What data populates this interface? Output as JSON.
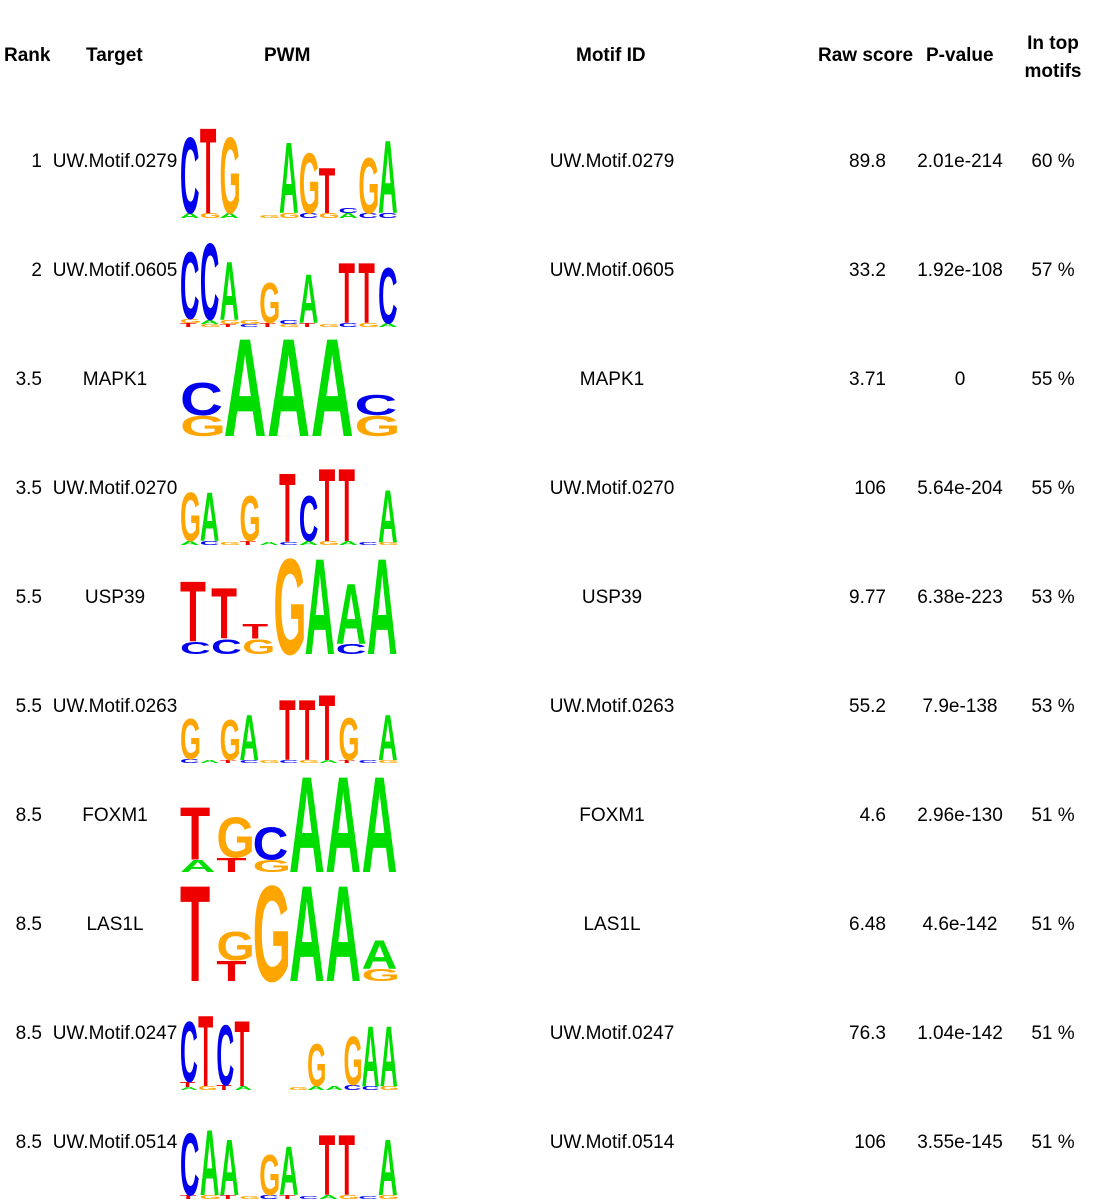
{
  "headers": {
    "rank": "Rank",
    "target": "Target",
    "pwm": "PWM",
    "motif_id": "Motif ID",
    "raw_score": "Raw score",
    "p_value": "P-value",
    "in_top_line1": "In top",
    "in_top_line2": "motifs"
  },
  "colors": {
    "A": "#00dd00",
    "C": "#0000ee",
    "G": "#ffa500",
    "T": "#ee0000"
  },
  "rows": [
    {
      "rank": "1",
      "target": "UW.Motif.0279",
      "motif_id": "UW.Motif.0279",
      "raw_score": "89.8",
      "p_value": "2.01e-214",
      "in_top": "60 %",
      "pwm": [
        [
          [
            "C",
            0.75
          ],
          [
            "A",
            0.05
          ]
        ],
        [
          [
            "T",
            0.85
          ],
          [
            "G",
            0.05
          ]
        ],
        [
          [
            "G",
            0.75
          ],
          [
            "A",
            0.05
          ]
        ],
        [],
        [
          [
            "G",
            0.03
          ]
        ],
        [
          [
            "A",
            0.7
          ],
          [
            "G",
            0.05
          ]
        ],
        [
          [
            "G",
            0.6
          ],
          [
            "C",
            0.05
          ]
        ],
        [
          [
            "T",
            0.45
          ],
          [
            "G",
            0.05
          ]
        ],
        [
          [
            "A",
            0.05
          ],
          [
            "C",
            0.05
          ]
        ],
        [
          [
            "G",
            0.55
          ],
          [
            "C",
            0.05
          ]
        ],
        [
          [
            "A",
            0.72
          ],
          [
            "C",
            0.05
          ]
        ]
      ]
    },
    {
      "rank": "2",
      "target": "UW.Motif.0605",
      "motif_id": "UW.Motif.0605",
      "raw_score": "33.2",
      "p_value": "1.92e-108",
      "in_top": "57 %",
      "pwm": [
        [
          [
            "C",
            0.66
          ],
          [
            "T",
            0.04
          ],
          [
            "G",
            0.04
          ]
        ],
        [
          [
            "C",
            0.76
          ],
          [
            "A",
            0.04
          ],
          [
            "G",
            0.03
          ]
        ],
        [
          [
            "A",
            0.58
          ],
          [
            "G",
            0.04
          ],
          [
            "T",
            0.03
          ]
        ],
        [
          [
            "G",
            0.04
          ],
          [
            "C",
            0.03
          ]
        ],
        [
          [
            "G",
            0.4
          ],
          [
            "T",
            0.04
          ]
        ],
        [
          [
            "C",
            0.04
          ],
          [
            "G",
            0.03
          ]
        ],
        [
          [
            "A",
            0.48
          ],
          [
            "T",
            0.04
          ]
        ],
        [
          [
            "G",
            0.03
          ]
        ],
        [
          [
            "T",
            0.6
          ],
          [
            "C",
            0.04
          ]
        ],
        [
          [
            "T",
            0.6
          ],
          [
            "G",
            0.04
          ]
        ],
        [
          [
            "C",
            0.55
          ],
          [
            "A",
            0.04
          ]
        ]
      ]
    },
    {
      "rank": "3.5",
      "target": "MAPK1",
      "motif_id": "MAPK1",
      "raw_score": "3.71",
      "p_value": "0",
      "in_top": "55 %",
      "pwm": [
        [
          [
            "C",
            0.32
          ],
          [
            "G",
            0.2
          ]
        ],
        [
          [
            "A",
            0.97
          ]
        ],
        [
          [
            "A",
            0.97
          ]
        ],
        [
          [
            "A",
            0.97
          ]
        ],
        [
          [
            "G",
            0.2
          ],
          [
            "C",
            0.2
          ]
        ]
      ]
    },
    {
      "rank": "3.5",
      "target": "UW.Motif.0270",
      "motif_id": "UW.Motif.0270",
      "raw_score": "106",
      "p_value": "5.64e-204",
      "in_top": "55 %",
      "pwm": [
        [
          [
            "G",
            0.48
          ],
          [
            "A",
            0.04
          ]
        ],
        [
          [
            "A",
            0.48
          ],
          [
            "C",
            0.04
          ]
        ],
        [
          [
            "G",
            0.03
          ]
        ],
        [
          [
            "G",
            0.45
          ],
          [
            "T",
            0.04
          ]
        ],
        [
          [
            "A",
            0.03
          ]
        ],
        [
          [
            "T",
            0.68
          ],
          [
            "C",
            0.03
          ]
        ],
        [
          [
            "C",
            0.45
          ],
          [
            "A",
            0.04
          ]
        ],
        [
          [
            "T",
            0.72
          ],
          [
            "G",
            0.04
          ]
        ],
        [
          [
            "T",
            0.72
          ],
          [
            "A",
            0.04
          ]
        ],
        [
          [
            "C",
            0.03
          ]
        ],
        [
          [
            "A",
            0.52
          ],
          [
            "G",
            0.03
          ]
        ]
      ]
    },
    {
      "rank": "5.5",
      "target": "USP39",
      "motif_id": "USP39",
      "raw_score": "9.77",
      "p_value": "6.38e-223",
      "in_top": "53 %",
      "pwm": [
        [
          [
            "T",
            0.6
          ],
          [
            "C",
            0.12
          ]
        ],
        [
          [
            "T",
            0.5
          ],
          [
            "C",
            0.15
          ]
        ],
        [
          [
            "G",
            0.15
          ],
          [
            "T",
            0.15
          ]
        ],
        [
          [
            "G",
            0.95
          ]
        ],
        [
          [
            "A",
            0.95
          ]
        ],
        [
          [
            "A",
            0.6
          ],
          [
            "C",
            0.1
          ]
        ],
        [
          [
            "A",
            0.95
          ]
        ]
      ]
    },
    {
      "rank": "5.5",
      "target": "UW.Motif.0263",
      "motif_id": "UW.Motif.0263",
      "raw_score": "55.2",
      "p_value": "7.9e-138",
      "in_top": "53 %",
      "pwm": [
        [
          [
            "G",
            0.4
          ],
          [
            "C",
            0.04
          ]
        ],
        [
          [
            "A",
            0.03
          ]
        ],
        [
          [
            "G",
            0.4
          ],
          [
            "T",
            0.03
          ]
        ],
        [
          [
            "A",
            0.45
          ],
          [
            "C",
            0.03
          ]
        ],
        [
          [
            "G",
            0.03
          ]
        ],
        [
          [
            "T",
            0.6
          ],
          [
            "C",
            0.03
          ]
        ],
        [
          [
            "T",
            0.6
          ],
          [
            "G",
            0.03
          ]
        ],
        [
          [
            "T",
            0.65
          ],
          [
            "A",
            0.03
          ]
        ],
        [
          [
            "G",
            0.42
          ],
          [
            "T",
            0.03
          ]
        ],
        [
          [
            "C",
            0.03
          ]
        ],
        [
          [
            "A",
            0.45
          ],
          [
            "G",
            0.03
          ]
        ]
      ]
    },
    {
      "rank": "8.5",
      "target": "FOXM1",
      "motif_id": "FOXM1",
      "raw_score": "4.6",
      "p_value": "2.96e-130",
      "in_top": "51 %",
      "pwm": [
        [
          [
            "T",
            0.52
          ],
          [
            "A",
            0.12
          ]
        ],
        [
          [
            "G",
            0.4
          ],
          [
            "T",
            0.14
          ]
        ],
        [
          [
            "C",
            0.32
          ],
          [
            "G",
            0.12
          ]
        ],
        [
          [
            "A",
            0.95
          ]
        ],
        [
          [
            "A",
            0.95
          ]
        ],
        [
          [
            "A",
            0.95
          ]
        ]
      ]
    },
    {
      "rank": "8.5",
      "target": "LAS1L",
      "motif_id": "LAS1L",
      "raw_score": "6.48",
      "p_value": "4.6e-142",
      "in_top": "51 %",
      "pwm": [
        [
          [
            "T",
            0.95
          ]
        ],
        [
          [
            "G",
            0.28
          ],
          [
            "T",
            0.2
          ]
        ],
        [
          [
            "G",
            0.95
          ]
        ],
        [
          [
            "A",
            0.95
          ]
        ],
        [
          [
            "A",
            0.95
          ]
        ],
        [
          [
            "A",
            0.28
          ],
          [
            "G",
            0.12
          ]
        ]
      ]
    },
    {
      "rank": "8.5",
      "target": "UW.Motif.0247",
      "motif_id": "UW.Motif.0247",
      "raw_score": "76.3",
      "p_value": "1.04e-142",
      "in_top": "51 %",
      "pwm": [
        [
          [
            "C",
            0.6
          ],
          [
            "T",
            0.05
          ],
          [
            "A",
            0.03
          ]
        ],
        [
          [
            "T",
            0.7
          ],
          [
            "G",
            0.04
          ]
        ],
        [
          [
            "C",
            0.6
          ],
          [
            "T",
            0.05
          ]
        ],
        [
          [
            "T",
            0.65
          ],
          [
            "A",
            0.04
          ]
        ],
        [],
        [],
        [
          [
            "G",
            0.03
          ]
        ],
        [
          [
            "G",
            0.42
          ],
          [
            "A",
            0.04
          ]
        ],
        [
          [
            "A",
            0.04
          ]
        ],
        [
          [
            "G",
            0.48
          ],
          [
            "C",
            0.05
          ]
        ],
        [
          [
            "A",
            0.6
          ],
          [
            "C",
            0.04
          ]
        ],
        [
          [
            "A",
            0.6
          ],
          [
            "G",
            0.04
          ]
        ]
      ]
    },
    {
      "rank": "8.5",
      "target": "UW.Motif.0514",
      "motif_id": "UW.Motif.0514",
      "raw_score": "106",
      "p_value": "3.55e-145",
      "in_top": "51 %",
      "pwm": [
        [
          [
            "C",
            0.62
          ],
          [
            "T",
            0.04
          ]
        ],
        [
          [
            "A",
            0.65
          ],
          [
            "G",
            0.04
          ]
        ],
        [
          [
            "A",
            0.55
          ],
          [
            "T",
            0.04
          ]
        ],
        [
          [
            "G",
            0.03
          ]
        ],
        [
          [
            "G",
            0.4
          ],
          [
            "C",
            0.04
          ]
        ],
        [
          [
            "A",
            0.48
          ],
          [
            "T",
            0.04
          ]
        ],
        [
          [
            "C",
            0.03
          ]
        ],
        [
          [
            "T",
            0.6
          ],
          [
            "A",
            0.04
          ]
        ],
        [
          [
            "T",
            0.6
          ],
          [
            "G",
            0.04
          ]
        ],
        [
          [
            "C",
            0.03
          ]
        ],
        [
          [
            "A",
            0.55
          ],
          [
            "G",
            0.04
          ]
        ]
      ]
    }
  ]
}
